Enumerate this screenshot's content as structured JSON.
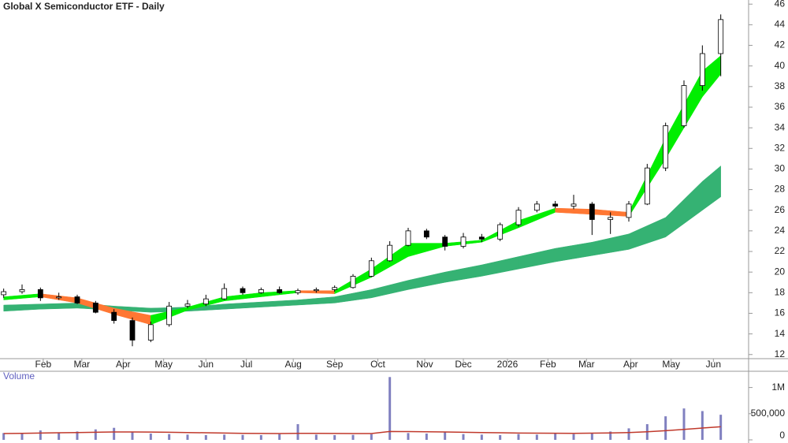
{
  "chart_data": [
    {
      "type": "candlestick",
      "title": "Global X Semiconductor ETF - Daily",
      "x": [
        0,
        1,
        2,
        3,
        4,
        5,
        6,
        7,
        8,
        9,
        10,
        11,
        12,
        13,
        14,
        15,
        16,
        17,
        18,
        19,
        20,
        21,
        22,
        23,
        24,
        25,
        26,
        27,
        28,
        29,
        30,
        31,
        32,
        33,
        34,
        35,
        36,
        37,
        38,
        39
      ],
      "open": [
        17.8,
        18.1,
        18.3,
        17.5,
        17.6,
        17.0,
        16.1,
        15.3,
        13.4,
        14.9,
        16.7,
        16.9,
        17.4,
        18.4,
        18.0,
        18.3,
        18.0,
        18.2,
        18.3,
        18.5,
        19.6,
        21.1,
        22.6,
        24.0,
        23.4,
        22.5,
        23.4,
        23.2,
        24.6,
        26.0,
        26.6,
        26.4,
        26.6,
        25.1,
        25.3,
        26.6,
        30.1,
        34.2,
        38.1,
        41.2
      ],
      "high": [
        18.4,
        18.8,
        18.5,
        18.0,
        17.8,
        17.2,
        16.4,
        15.6,
        15.2,
        17.1,
        17.3,
        17.8,
        18.9,
        18.6,
        18.5,
        18.6,
        18.4,
        18.5,
        18.7,
        19.8,
        21.4,
        23.0,
        24.3,
        24.2,
        23.6,
        23.8,
        23.7,
        24.8,
        26.3,
        26.9,
        26.9,
        27.5,
        26.8,
        25.8,
        26.9,
        30.5,
        34.5,
        38.6,
        42.0,
        45.0
      ],
      "low": [
        17.5,
        17.9,
        17.2,
        17.3,
        16.9,
        16.0,
        15.0,
        12.8,
        13.2,
        14.7,
        16.5,
        16.7,
        17.3,
        17.8,
        17.9,
        17.9,
        17.8,
        18.0,
        18.1,
        18.4,
        19.5,
        21.0,
        22.5,
        23.2,
        22.1,
        22.3,
        22.9,
        23.0,
        24.4,
        25.8,
        26.2,
        26.1,
        23.6,
        23.7,
        24.9,
        26.5,
        29.8,
        34.0,
        37.6,
        39.0
      ],
      "close": [
        18.1,
        18.3,
        17.5,
        17.6,
        17.0,
        16.1,
        15.3,
        13.4,
        14.9,
        16.7,
        16.9,
        17.4,
        18.4,
        18.0,
        18.3,
        18.0,
        18.2,
        18.3,
        18.5,
        19.6,
        21.1,
        22.6,
        24.0,
        23.4,
        22.5,
        23.4,
        23.2,
        24.6,
        26.0,
        26.6,
        26.4,
        26.6,
        25.1,
        25.3,
        26.6,
        30.1,
        34.2,
        38.1,
        41.2,
        44.5
      ],
      "up_color": "#ffffff",
      "down_color": "#000000",
      "bands": [
        {
          "x": [
            0,
            2,
            4,
            6,
            8,
            10,
            12,
            14,
            16,
            18,
            20,
            22,
            24,
            26,
            28,
            30,
            32,
            34,
            36,
            38,
            39
          ],
          "lower": [
            17.3,
            17.6,
            17.0,
            15.9,
            14.9,
            16.3,
            17.2,
            17.6,
            18.0,
            17.9,
            19.5,
            21.5,
            22.5,
            22.9,
            24.3,
            25.8,
            25.6,
            25.4,
            31.0,
            37.0,
            39.2
          ],
          "upper": [
            17.6,
            17.9,
            17.5,
            16.5,
            15.8,
            16.6,
            17.6,
            18.0,
            18.2,
            18.2,
            20.3,
            22.8,
            22.8,
            23.1,
            25.0,
            26.2,
            26.1,
            25.8,
            33.0,
            39.5,
            41.0
          ],
          "up_color": "#00ee00",
          "down_color": "#ff7733"
        },
        {
          "x": [
            0,
            2,
            4,
            6,
            8,
            10,
            12,
            14,
            16,
            18,
            20,
            22,
            24,
            26,
            28,
            30,
            32,
            34,
            36,
            38,
            39
          ],
          "lower": [
            16.2,
            16.4,
            16.5,
            16.3,
            16.1,
            16.2,
            16.4,
            16.6,
            16.8,
            17.0,
            17.5,
            18.3,
            19.0,
            19.6,
            20.3,
            21.0,
            21.6,
            22.2,
            23.4,
            26.0,
            27.3
          ],
          "upper": [
            16.8,
            16.9,
            17.0,
            16.7,
            16.5,
            16.6,
            16.9,
            17.1,
            17.3,
            17.6,
            18.3,
            19.2,
            20.0,
            20.7,
            21.5,
            22.3,
            22.9,
            23.7,
            25.3,
            28.8,
            30.3
          ],
          "up_color": "#35b273",
          "down_color": "#35b273"
        }
      ],
      "xlim": [
        -0.2,
        40.3
      ],
      "xticks": [
        {
          "value": 2.15,
          "label": "Feb"
        },
        {
          "value": 4.25,
          "label": "Mar"
        },
        {
          "value": 6.5,
          "label": "Apr"
        },
        {
          "value": 8.7,
          "label": "May"
        },
        {
          "value": 11.0,
          "label": "Jun"
        },
        {
          "value": 13.2,
          "label": "Jul"
        },
        {
          "value": 15.75,
          "label": "Aug"
        },
        {
          "value": 18.0,
          "label": "Sep"
        },
        {
          "value": 20.35,
          "label": "Oct"
        },
        {
          "value": 22.9,
          "label": "Nov"
        },
        {
          "value": 25.0,
          "label": "Dec"
        },
        {
          "value": 27.4,
          "label": "2026"
        },
        {
          "value": 29.6,
          "label": "Feb"
        },
        {
          "value": 31.7,
          "label": "Mar"
        },
        {
          "value": 34.1,
          "label": "Apr"
        },
        {
          "value": 36.3,
          "label": "May"
        },
        {
          "value": 38.6,
          "label": "Jun"
        }
      ],
      "ylim": [
        11.6,
        46.4
      ],
      "yticks": [
        12,
        14,
        16,
        18,
        20,
        22,
        24,
        26,
        28,
        30,
        32,
        34,
        36,
        38,
        40,
        42,
        44,
        46
      ]
    },
    {
      "type": "volume",
      "title": "Volume",
      "x": [
        0,
        1,
        2,
        3,
        4,
        5,
        6,
        7,
        8,
        9,
        10,
        11,
        12,
        13,
        14,
        15,
        16,
        17,
        18,
        19,
        20,
        21,
        22,
        23,
        24,
        25,
        26,
        27,
        28,
        29,
        30,
        31,
        32,
        33,
        34,
        35,
        36,
        37,
        38,
        39
      ],
      "values": [
        130000,
        120000,
        180000,
        140000,
        160000,
        200000,
        230000,
        150000,
        120000,
        110000,
        100000,
        90000,
        100000,
        95000,
        90000,
        110000,
        300000,
        100000,
        90000,
        95000,
        110000,
        1200000,
        130000,
        120000,
        150000,
        110000,
        100000,
        90000,
        110000,
        100000,
        120000,
        110000,
        130000,
        160000,
        220000,
        300000,
        450000,
        600000,
        550000,
        480000
      ],
      "color": "#8080c0",
      "ma": [
        120000,
        125000,
        130000,
        135000,
        140000,
        145000,
        150000,
        150000,
        148000,
        145000,
        140000,
        135000,
        130000,
        125000,
        122000,
        120000,
        125000,
        125000,
        122000,
        120000,
        120000,
        160000,
        158000,
        155000,
        150000,
        145000,
        140000,
        135000,
        130000,
        128000,
        126000,
        125000,
        128000,
        132000,
        140000,
        155000,
        175000,
        200000,
        225000,
        250000
      ],
      "ma_color": "#c0392b",
      "ylim": [
        0,
        1250000
      ],
      "yticks": [
        0,
        {
          "value": 500000,
          "label": "500,000"
        },
        {
          "value": 1000000,
          "label": "1M"
        }
      ]
    }
  ]
}
